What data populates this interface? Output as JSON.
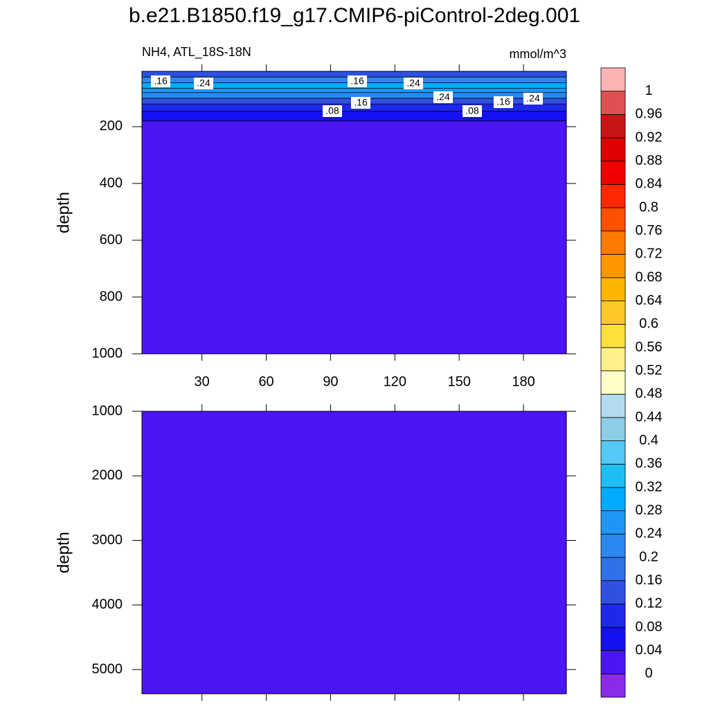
{
  "chart_data": {
    "type": "contour",
    "title": "b.e21.B1850.f19_g17.CMIP6-piControl-2deg.001",
    "left_label": "NH4, ATL_18S-18N",
    "right_label": "mmol/m^3",
    "xlim": [
      2,
      200
    ],
    "xticks": [
      30,
      60,
      90,
      120,
      150,
      180
    ],
    "panels": [
      {
        "ylabel": "depth",
        "ylim": [
          5,
          1000
        ],
        "yticks": [
          200,
          400,
          600,
          800,
          1000
        ],
        "bands": [
          {
            "from": 5,
            "to": 25,
            "value": 0.13
          },
          {
            "from": 25,
            "to": 45,
            "value": 0.2
          },
          {
            "from": 45,
            "to": 65,
            "value": 0.3
          },
          {
            "from": 65,
            "to": 80,
            "value": 0.26
          },
          {
            "from": 80,
            "to": 100,
            "value": 0.2
          },
          {
            "from": 100,
            "to": 120,
            "value": 0.15
          },
          {
            "from": 120,
            "to": 145,
            "value": 0.1
          },
          {
            "from": 145,
            "to": 180,
            "value": 0.06
          },
          {
            "from": 180,
            "to": 1000,
            "value": 0.02
          }
        ],
        "contour_labels": [
          {
            "value": 0.16,
            "label": ".16"
          },
          {
            "value": 0.24,
            "label": ".24"
          },
          {
            "value": 0.16,
            "label": ".16"
          },
          {
            "value": 0.24,
            "label": ".24"
          },
          {
            "value": 0.24,
            "label": ".24"
          },
          {
            "value": 0.16,
            "label": ".16"
          },
          {
            "value": 0.08,
            "label": ".08"
          },
          {
            "value": 0.08,
            "label": ".08"
          },
          {
            "value": 0.16,
            "label": ".16"
          },
          {
            "value": 0.24,
            "label": ".24"
          }
        ]
      },
      {
        "ylabel": "depth",
        "ylim": [
          1000,
          5375
        ],
        "yticks": [
          1000,
          2000,
          3000,
          4000,
          5000
        ],
        "bands": [
          {
            "from": 1000,
            "to": 5375,
            "value": 0.02
          }
        ],
        "contour_labels": []
      }
    ],
    "levels": [
      0,
      0.04,
      0.08,
      0.12,
      0.16,
      0.2,
      0.24,
      0.28,
      0.32,
      0.36,
      0.4,
      0.44,
      0.48,
      0.52,
      0.56,
      0.6,
      0.64,
      0.68,
      0.72,
      0.76,
      0.8,
      0.84,
      0.88,
      0.92,
      0.96,
      1
    ],
    "colors": [
      "#8a2be8",
      "#4a16f4",
      "#1410f0",
      "#1e28e8",
      "#3050e0",
      "#3070e8",
      "#2a88f0",
      "#1e96f5",
      "#00aaff",
      "#1ebef5",
      "#55c8f5",
      "#8ccde8",
      "#b4dcf0",
      "#ffffc8",
      "#fff08c",
      "#ffe03c",
      "#ffc828",
      "#ffb400",
      "#ff9600",
      "#ff7800",
      "#ff5000",
      "#ff2800",
      "#f00000",
      "#dc0000",
      "#c81414",
      "#e05050",
      "#ffb4b4"
    ]
  }
}
